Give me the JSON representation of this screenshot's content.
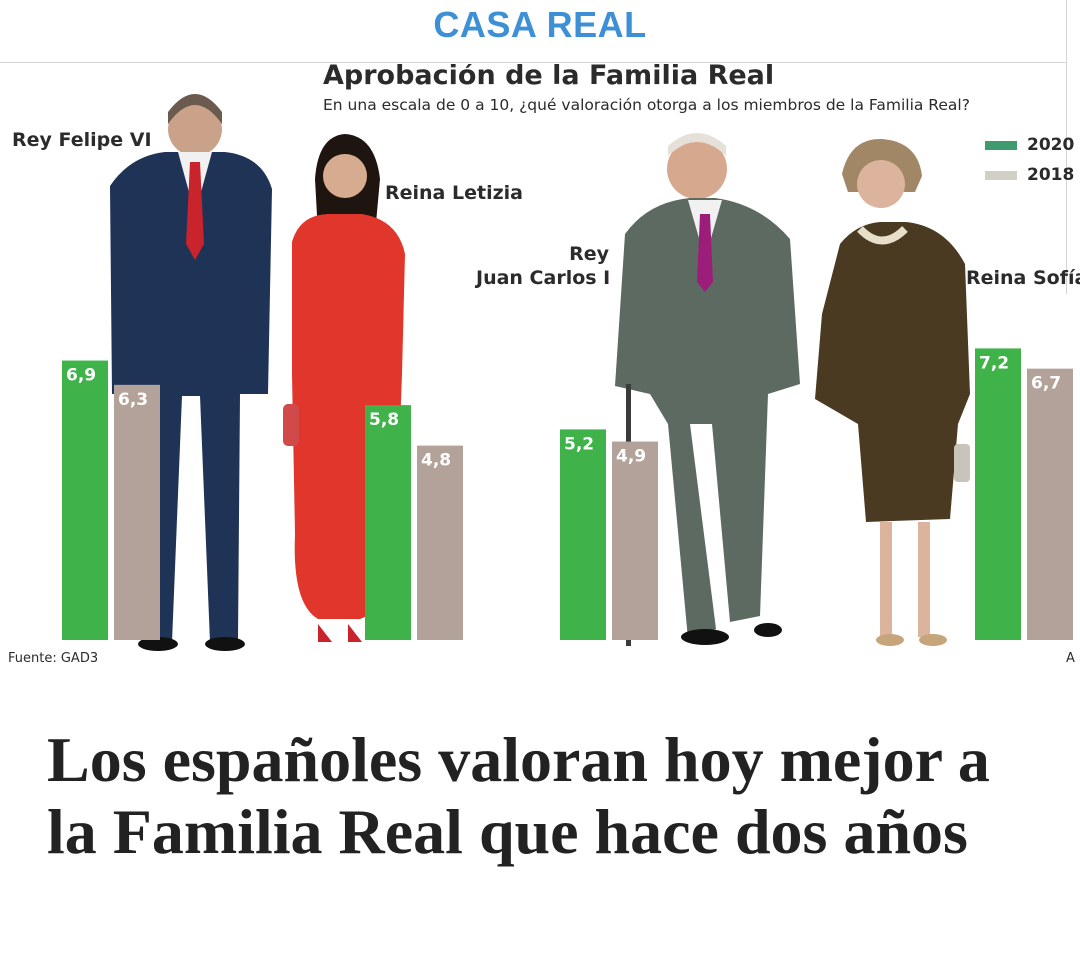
{
  "header": {
    "section": "CASA REAL"
  },
  "chart_data": {
    "type": "bar",
    "title": "Aprobación de la Familia Real",
    "subtitle": "En una escala de 0 a 10, ¿qué valoración otorga a los miembros de la Familia Real?",
    "categories": [
      "Rey Felipe VI",
      "Reina Letizia",
      "Rey Juan Carlos I",
      "Reina Sofía"
    ],
    "series": [
      {
        "name": "2020",
        "color": "#3fb24a",
        "values": [
          6.9,
          5.8,
          5.2,
          7.2
        ],
        "labels": [
          "6,9",
          "5,8",
          "5,2",
          "7,2"
        ]
      },
      {
        "name": "2018",
        "color": "#b3a299",
        "values": [
          6.3,
          4.8,
          4.9,
          6.7
        ],
        "labels": [
          "6,3",
          "4,8",
          "4,9",
          "6,7"
        ]
      }
    ],
    "legend": [
      {
        "label": "2020",
        "color": "#3f9a70"
      },
      {
        "label": "2018",
        "color": "#d2cfc6"
      }
    ],
    "ylim": [
      0,
      10
    ],
    "xlabel": "",
    "ylabel": "",
    "source": "Fuente: GAD3",
    "credit": "A"
  },
  "labels": {
    "felipe": "Rey Felipe VI",
    "letizia": "Reina Letizia",
    "juan_carlos_1": "Rey",
    "juan_carlos_2": "Juan Carlos I",
    "sofia": "Reina Sofía"
  },
  "article": {
    "headline": "Los españoles valoran hoy mejor a la Familia Real que hace dos años"
  }
}
